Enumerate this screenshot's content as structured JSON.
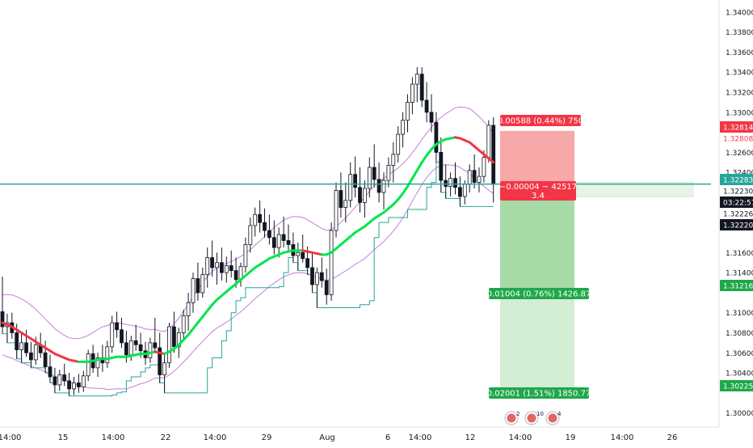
{
  "chart_data": {
    "type": "candlestick",
    "y_axis": {
      "range": [
        1.2986,
        1.3412
      ],
      "ticks": [
        "1.34000",
        "1.33800",
        "1.33600",
        "1.33400",
        "1.33200",
        "1.33000",
        "1.32600",
        "1.32400",
        "1.31600",
        "1.31400",
        "1.31000",
        "1.30800",
        "1.30600",
        "1.30400",
        "1.30000"
      ]
    },
    "x_axis": {
      "ticks": [
        "14:00",
        "15",
        "14:00",
        "22",
        "14:00",
        "29",
        "Aug",
        "6",
        "14:00",
        "12",
        "14:00",
        "19",
        "14:00",
        "26"
      ]
    },
    "price_badges": [
      {
        "value": "1.32814",
        "role": "stop-loss-upper"
      },
      {
        "value": "1.32808",
        "role": "stop-loss-lower"
      },
      {
        "value": "1.32283",
        "role": "last-price"
      },
      {
        "value": "1.32230",
        "role": "entry"
      },
      {
        "value": "03:22:57",
        "role": "countdown"
      },
      {
        "value": "1.32226",
        "role": "bid"
      },
      {
        "value": "1.32220",
        "role": "ask"
      },
      {
        "value": "1.31216",
        "role": "take-profit-1"
      },
      {
        "value": "1.30225",
        "role": "take-profit-2"
      }
    ],
    "position_labels": {
      "stop": "0.00588 (0.44%) 750",
      "entry_pnl": "−0.00004 ~ 42517",
      "entry_ratio": "3.4",
      "target1": "0.01004 (0.76%) 1426.87",
      "target2": "0.02001 (1.51%) 1850.77"
    },
    "levels": {
      "horizontal_line": 1.32283,
      "entry": 1.3223,
      "stop": 1.32814,
      "target1": 1.31216,
      "target2": 1.30225
    },
    "event_markers": [
      {
        "label": "2"
      },
      {
        "label": "10"
      },
      {
        "label": "4"
      }
    ],
    "colors": {
      "up": "#ffffff",
      "down": "#131722",
      "wick": "#131722",
      "ma_up": "#00e64d",
      "ma_down": "#f23645",
      "band": "#c57fdb",
      "step": "#26a69a",
      "hline": "#26a69a",
      "stop_zone": "#f7a8a8",
      "target_zone_1": "#a6dba8",
      "target_zone_2": "#d4edd5",
      "red_label": "#f23645",
      "green_label": "#1fa84a"
    },
    "candles": [
      [
        1.3101,
        1.3136,
        1.3079,
        1.3086
      ],
      [
        1.3086,
        1.3099,
        1.307,
        1.309
      ],
      [
        1.309,
        1.31,
        1.3074,
        1.308
      ],
      [
        1.308,
        1.3089,
        1.3054,
        1.3063
      ],
      [
        1.3063,
        1.308,
        1.305,
        1.307
      ],
      [
        1.307,
        1.3083,
        1.3056,
        1.306
      ],
      [
        1.306,
        1.3071,
        1.3045,
        1.3053
      ],
      [
        1.3053,
        1.3076,
        1.3048,
        1.3068
      ],
      [
        1.3068,
        1.308,
        1.3055,
        1.306
      ],
      [
        1.306,
        1.3072,
        1.304,
        1.3046
      ],
      [
        1.3046,
        1.3058,
        1.303,
        1.3036
      ],
      [
        1.3036,
        1.3045,
        1.302,
        1.3028
      ],
      [
        1.3028,
        1.3043,
        1.3022,
        1.3038
      ],
      [
        1.3038,
        1.3049,
        1.3027,
        1.3032
      ],
      [
        1.3032,
        1.304,
        1.3017,
        1.3024
      ],
      [
        1.3024,
        1.3036,
        1.3018,
        1.303
      ],
      [
        1.303,
        1.3039,
        1.302,
        1.3026
      ],
      [
        1.3026,
        1.3042,
        1.3021,
        1.3037
      ],
      [
        1.3037,
        1.3063,
        1.3032,
        1.3059
      ],
      [
        1.3059,
        1.3068,
        1.304,
        1.3045
      ],
      [
        1.3045,
        1.306,
        1.3036,
        1.3055
      ],
      [
        1.3055,
        1.3068,
        1.3041,
        1.305
      ],
      [
        1.305,
        1.3072,
        1.3045,
        1.3066
      ],
      [
        1.3066,
        1.3097,
        1.306,
        1.309
      ],
      [
        1.309,
        1.3101,
        1.3075,
        1.3083
      ],
      [
        1.3083,
        1.3095,
        1.3065,
        1.307
      ],
      [
        1.307,
        1.3082,
        1.305,
        1.3058
      ],
      [
        1.3058,
        1.3077,
        1.3052,
        1.3072
      ],
      [
        1.3072,
        1.3088,
        1.3062,
        1.3068
      ],
      [
        1.3068,
        1.308,
        1.3055,
        1.3062
      ],
      [
        1.3062,
        1.3071,
        1.3048,
        1.3055
      ],
      [
        1.3055,
        1.3075,
        1.305,
        1.307
      ],
      [
        1.307,
        1.3095,
        1.306,
        1.3065
      ],
      [
        1.3065,
        1.308,
        1.303,
        1.3038
      ],
      [
        1.3038,
        1.3058,
        1.302,
        1.305
      ],
      [
        1.305,
        1.309,
        1.3045,
        1.3086
      ],
      [
        1.3086,
        1.3101,
        1.306,
        1.3066
      ],
      [
        1.3066,
        1.3085,
        1.3055,
        1.308
      ],
      [
        1.308,
        1.3103,
        1.3072,
        1.3097
      ],
      [
        1.3097,
        1.312,
        1.3082,
        1.311
      ],
      [
        1.311,
        1.314,
        1.31,
        1.3134
      ],
      [
        1.3134,
        1.315,
        1.3112,
        1.312
      ],
      [
        1.312,
        1.3145,
        1.3115,
        1.3138
      ],
      [
        1.3138,
        1.3165,
        1.3125,
        1.3155
      ],
      [
        1.3155,
        1.3172,
        1.3136,
        1.3145
      ],
      [
        1.3145,
        1.316,
        1.3128,
        1.315
      ],
      [
        1.315,
        1.3165,
        1.3132,
        1.314
      ],
      [
        1.314,
        1.3156,
        1.313,
        1.3147
      ],
      [
        1.3147,
        1.3162,
        1.3135,
        1.3142
      ],
      [
        1.3142,
        1.3155,
        1.3125,
        1.3133
      ],
      [
        1.3133,
        1.315,
        1.3126,
        1.3146
      ],
      [
        1.3146,
        1.3175,
        1.314,
        1.3168
      ],
      [
        1.3168,
        1.3195,
        1.316,
        1.3187
      ],
      [
        1.3187,
        1.3205,
        1.3176,
        1.3198
      ],
      [
        1.3198,
        1.3212,
        1.318,
        1.319
      ],
      [
        1.319,
        1.3204,
        1.3175,
        1.3182
      ],
      [
        1.3182,
        1.3198,
        1.3168,
        1.3175
      ],
      [
        1.3175,
        1.3192,
        1.3158,
        1.3165
      ],
      [
        1.3165,
        1.3185,
        1.3155,
        1.3178
      ],
      [
        1.3178,
        1.3196,
        1.3165,
        1.3172
      ],
      [
        1.3172,
        1.3188,
        1.316,
        1.3168
      ],
      [
        1.3168,
        1.318,
        1.315,
        1.3157
      ],
      [
        1.3157,
        1.317,
        1.3142,
        1.316
      ],
      [
        1.316,
        1.3178,
        1.315,
        1.3154
      ],
      [
        1.3154,
        1.3166,
        1.3138,
        1.3145
      ],
      [
        1.3145,
        1.316,
        1.312,
        1.3128
      ],
      [
        1.3128,
        1.3145,
        1.3105,
        1.314
      ],
      [
        1.314,
        1.3155,
        1.3125,
        1.3132
      ],
      [
        1.3132,
        1.3144,
        1.3108,
        1.3118
      ],
      [
        1.3118,
        1.319,
        1.3112,
        1.3182
      ],
      [
        1.3182,
        1.323,
        1.3175,
        1.3222
      ],
      [
        1.3222,
        1.324,
        1.3195,
        1.3205
      ],
      [
        1.3205,
        1.323,
        1.319,
        1.3212
      ],
      [
        1.3212,
        1.325,
        1.3205,
        1.3238
      ],
      [
        1.3238,
        1.3256,
        1.3215,
        1.3225
      ],
      [
        1.3225,
        1.3245,
        1.32,
        1.321
      ],
      [
        1.321,
        1.3232,
        1.3195,
        1.3224
      ],
      [
        1.3224,
        1.3255,
        1.3215,
        1.3245
      ],
      [
        1.3245,
        1.3268,
        1.3225,
        1.3233
      ],
      [
        1.3233,
        1.325,
        1.321,
        1.322
      ],
      [
        1.322,
        1.324,
        1.3203,
        1.3232
      ],
      [
        1.3232,
        1.3255,
        1.3225,
        1.3247
      ],
      [
        1.3247,
        1.327,
        1.323,
        1.3258
      ],
      [
        1.3258,
        1.3286,
        1.325,
        1.3278
      ],
      [
        1.3278,
        1.33,
        1.3265,
        1.3292
      ],
      [
        1.3292,
        1.3318,
        1.328,
        1.331
      ],
      [
        1.331,
        1.3335,
        1.3298,
        1.3328
      ],
      [
        1.3328,
        1.3345,
        1.331,
        1.3338
      ],
      [
        1.3338,
        1.3345,
        1.3305,
        1.3312
      ],
      [
        1.3312,
        1.333,
        1.329,
        1.33
      ],
      [
        1.33,
        1.3318,
        1.328,
        1.329
      ],
      [
        1.329,
        1.33,
        1.325,
        1.326
      ],
      [
        1.326,
        1.3275,
        1.322,
        1.3232
      ],
      [
        1.3232,
        1.3248,
        1.3214,
        1.3226
      ],
      [
        1.3226,
        1.324,
        1.3216,
        1.3234
      ],
      [
        1.3234,
        1.325,
        1.3218,
        1.3225
      ],
      [
        1.3225,
        1.3236,
        1.3206,
        1.3216
      ],
      [
        1.3216,
        1.3232,
        1.3208,
        1.3228
      ],
      [
        1.3228,
        1.3248,
        1.322,
        1.3242
      ],
      [
        1.3242,
        1.3258,
        1.3224,
        1.323
      ],
      [
        1.323,
        1.3245,
        1.322,
        1.3236
      ],
      [
        1.3236,
        1.3262,
        1.323,
        1.3255
      ],
      [
        1.3255,
        1.3292,
        1.325,
        1.3287
      ],
      [
        1.3287,
        1.3295,
        1.321,
        1.3228
      ]
    ],
    "ma": [
      1.309,
      1.3088,
      1.3086,
      1.3083,
      1.308,
      1.3077,
      1.3074,
      1.3071,
      1.3068,
      1.3065,
      1.3062,
      1.3059,
      1.3057,
      1.3055,
      1.3053,
      1.3052,
      1.3051,
      1.3051,
      1.3051,
      1.3052,
      1.3053,
      1.3054,
      1.3054,
      1.3055,
      1.3056,
      1.3056,
      1.3056,
      1.3057,
      1.3058,
      1.3059,
      1.3059,
      1.306,
      1.3061,
      1.306,
      1.3059,
      1.3061,
      1.3064,
      1.3068,
      1.3073,
      1.3078,
      1.3084,
      1.309,
      1.3096,
      1.3102,
      1.3108,
      1.3113,
      1.3117,
      1.3121,
      1.3125,
      1.3129,
      1.3133,
      1.3137,
      1.3141,
      1.3145,
      1.3148,
      1.3151,
      1.3154,
      1.3156,
      1.3158,
      1.316,
      1.3161,
      1.3162,
      1.3162,
      1.3162,
      1.3161,
      1.316,
      1.3159,
      1.3158,
      1.3158,
      1.316,
      1.3164,
      1.3168,
      1.3172,
      1.3176,
      1.318,
      1.3183,
      1.3186,
      1.319,
      1.3194,
      1.3197,
      1.32,
      1.3204,
      1.3208,
      1.3213,
      1.3219,
      1.3226,
      1.3234,
      1.3242,
      1.325,
      1.3257,
      1.3263,
      1.3268,
      1.3271,
      1.3273,
      1.3274,
      1.3275,
      1.3274,
      1.3272,
      1.327,
      1.3266,
      1.3262,
      1.3258,
      1.3254,
      1.325
    ]
  }
}
